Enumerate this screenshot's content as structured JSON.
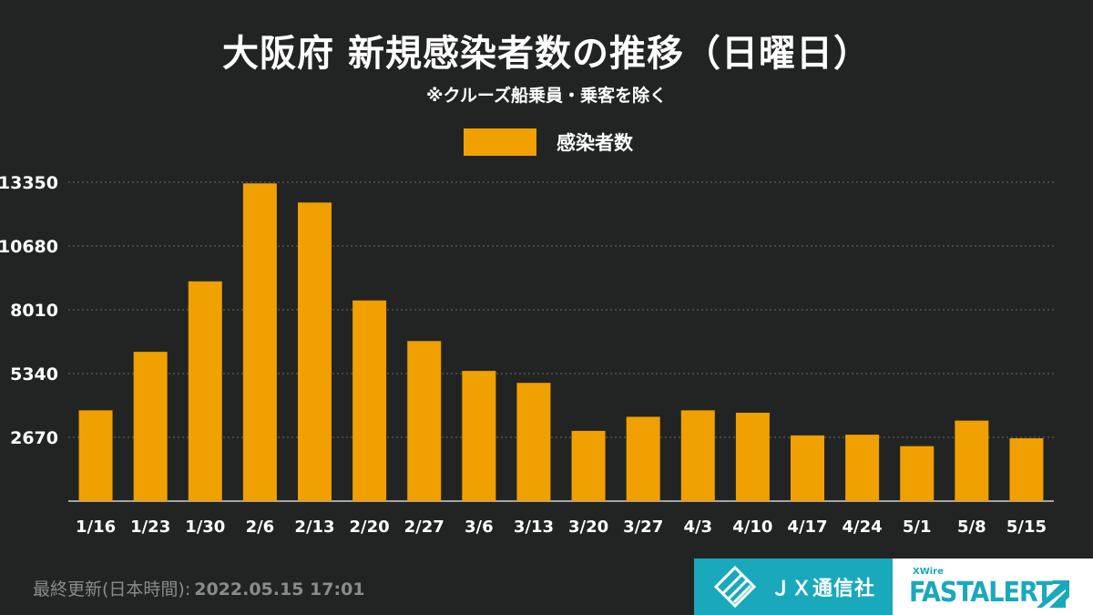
{
  "header": {
    "title": "大阪府  新規感染者数の推移（日曜日）",
    "subtitle": "※クルーズ船乗員・乗客を除く"
  },
  "colors": {
    "background": "#222423",
    "bar": "#f0a000",
    "grid": "#6a6c6b",
    "text": "#ffffff",
    "jx_brand": "#1aa9bc"
  },
  "chart_data": {
    "type": "bar",
    "categories": [
      "1/16",
      "1/23",
      "1/30",
      "2/6",
      "2/13",
      "2/20",
      "2/27",
      "3/6",
      "3/13",
      "3/20",
      "3/27",
      "4/3",
      "4/10",
      "4/17",
      "4/24",
      "5/1",
      "5/8",
      "5/15"
    ],
    "series": [
      {
        "name": "感染者数",
        "values": [
          3800,
          6250,
          9200,
          13300,
          12500,
          8400,
          6700,
          5450,
          4950,
          2940,
          3530,
          3800,
          3700,
          2750,
          2780,
          2300,
          3370,
          2630
        ]
      }
    ],
    "yticks": [
      2670,
      5340,
      8010,
      10680,
      13350
    ],
    "ylim": [
      0,
      13350
    ],
    "grid": true,
    "legend_position": "top-center",
    "title": "大阪府  新規感染者数の推移（日曜日）",
    "subtitle": "※クルーズ船乗員・乗客を除く",
    "xlabel": "",
    "ylabel": ""
  },
  "footer": {
    "updated_label": "最終更新(日本時間):",
    "updated_value": "2022.05.15 17:01",
    "brand_jx": "ＪＸ通信社",
    "brand_xwire": "XWire",
    "brand_fastalert": "FASTALERT"
  },
  "icons": {
    "jx_logo": "jx-logo-icon",
    "fastalert_arrow": "fastalert-arrow-icon"
  }
}
